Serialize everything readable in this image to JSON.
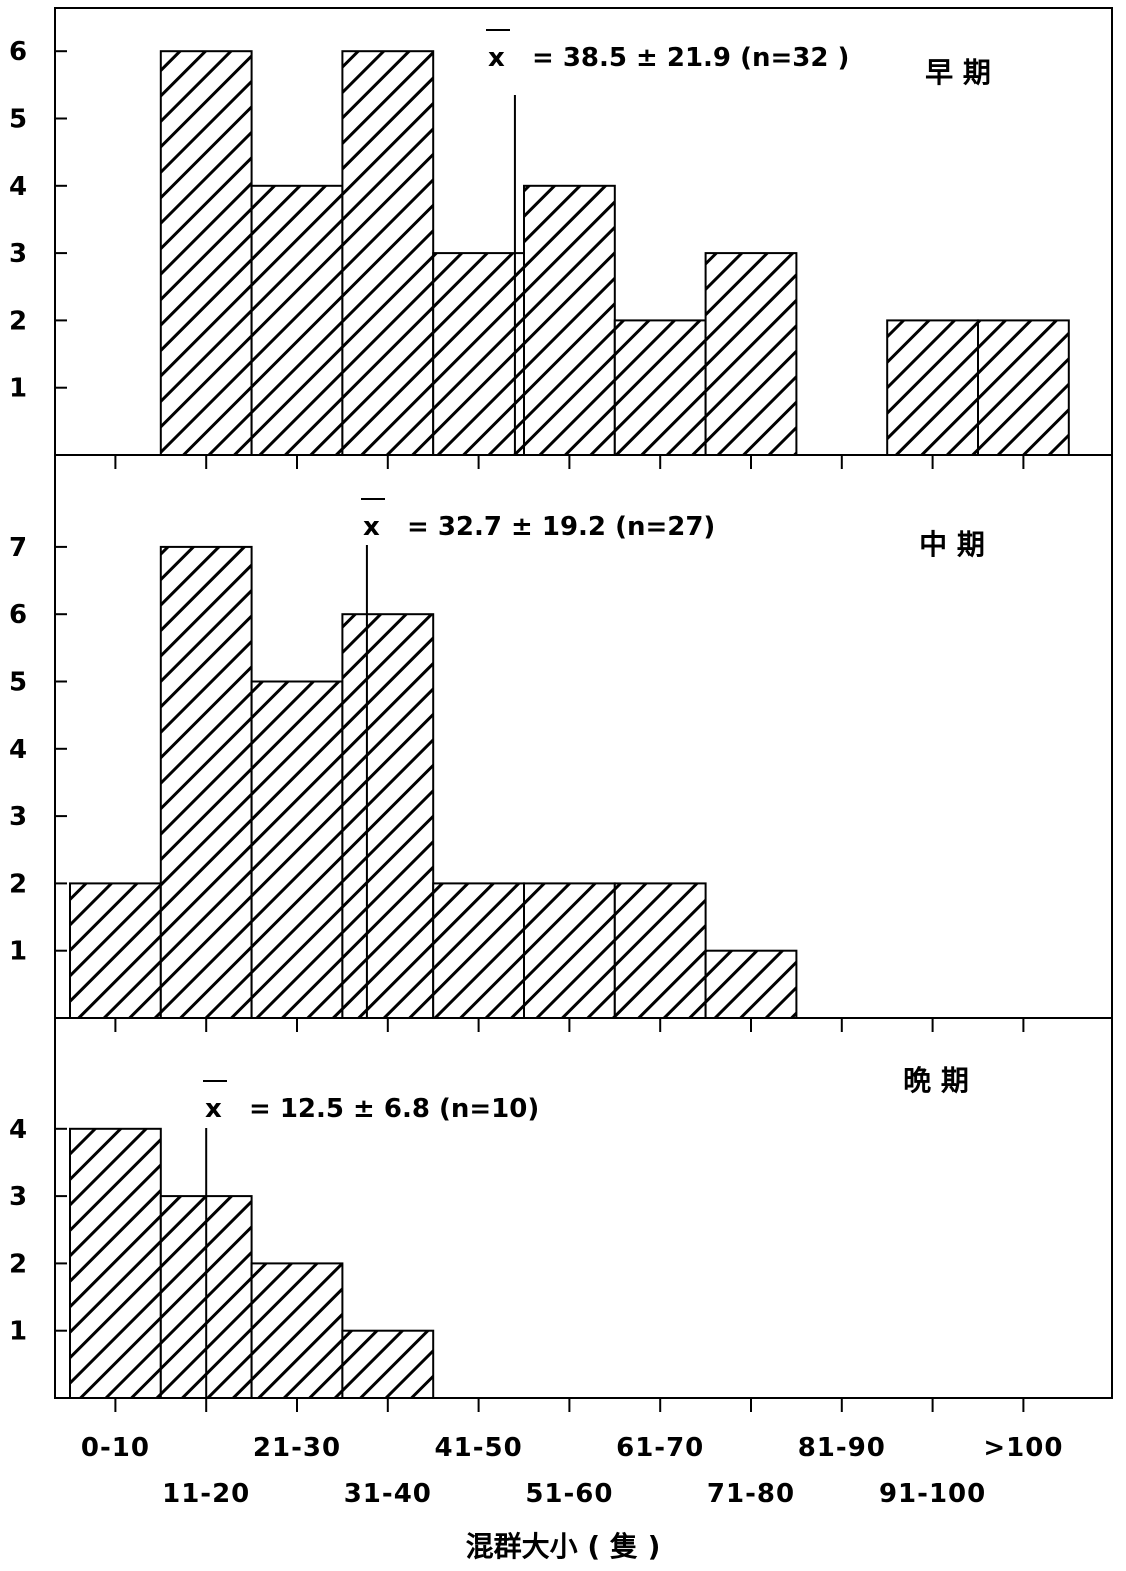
{
  "chart_data": [
    {
      "type": "bar",
      "panel_label": "早 期",
      "categories": [
        "0-10",
        "11-20",
        "21-30",
        "31-40",
        "41-50",
        "51-60",
        "61-70",
        "71-80",
        "81-90",
        "91-100",
        ">100"
      ],
      "values": [
        0,
        6,
        4,
        6,
        3,
        4,
        2,
        3,
        0,
        2,
        2
      ],
      "mean_label_x": "x",
      "mean_label_rest": "= 38.5 ± 21.9 (n=32 )",
      "mean_position": 4.9,
      "yticks": [
        "1",
        "2",
        "3",
        "4",
        "5",
        "6"
      ],
      "ylim": [
        0,
        6.6
      ]
    },
    {
      "type": "bar",
      "panel_label": "中 期",
      "categories": [
        "0-10",
        "11-20",
        "21-30",
        "31-40",
        "41-50",
        "51-60",
        "61-70",
        "71-80",
        "81-90",
        "91-100",
        ">100"
      ],
      "values": [
        2,
        7,
        5,
        6,
        2,
        2,
        2,
        1,
        0,
        0,
        0
      ],
      "mean_label_x": "x",
      "mean_label_rest": "= 32.7 ± 19.2 (n=27)",
      "mean_position": 3.27,
      "yticks": [
        "1",
        "2",
        "3",
        "4",
        "5",
        "6",
        "7"
      ],
      "ylim": [
        0,
        7
      ]
    },
    {
      "type": "bar",
      "panel_label": "晩 期",
      "categories": [
        "0-10",
        "11-20",
        "21-30",
        "31-40",
        "41-50",
        "51-60",
        "61-70",
        "71-80",
        "81-90",
        "91-100",
        ">100"
      ],
      "values": [
        4,
        3,
        2,
        1,
        0,
        0,
        0,
        0,
        0,
        0,
        0
      ],
      "mean_label_x": "x",
      "mean_label_rest": "= 12.5 ± 6.8 (n=10)",
      "mean_position": 1.5,
      "yticks": [
        "1",
        "2",
        "3",
        "4"
      ],
      "ylim": [
        0,
        4
      ]
    }
  ],
  "x_categories_row1": [
    "0-10",
    "21-30",
    "41-50",
    "61-70",
    "81-90",
    ">100"
  ],
  "x_categories_row2": [
    "11-20",
    "31-40",
    "51-60",
    "71-80",
    "91-100"
  ],
  "xlabel": "混群大小 ( 隻 )",
  "colors": {
    "ink": "#000000",
    "background": "#ffffff"
  }
}
